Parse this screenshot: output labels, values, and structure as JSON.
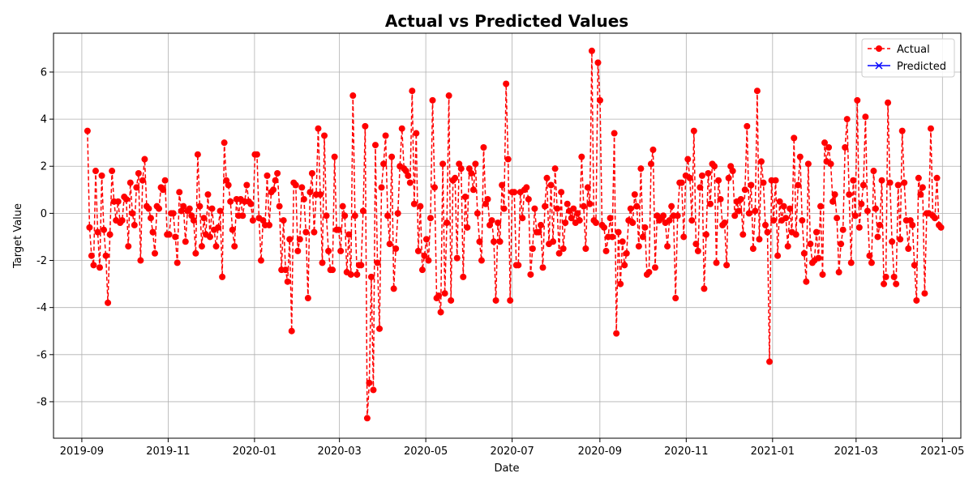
{
  "chart_data": {
    "type": "line",
    "title": "Actual vs Predicted Values",
    "xlabel": "Date",
    "ylabel": "Target Value",
    "xlim": [
      "2019-08-12",
      "2021-05-14"
    ],
    "ylim": [
      -9.55,
      7.65
    ],
    "grid": true,
    "legend_position": "top-right",
    "x_ticks": [
      {
        "date": "2019-09-01",
        "label": "2019-09"
      },
      {
        "date": "2019-11-01",
        "label": "2019-11"
      },
      {
        "date": "2020-01-01",
        "label": "2020-01"
      },
      {
        "date": "2020-03-01",
        "label": "2020-03"
      },
      {
        "date": "2020-05-01",
        "label": "2020-05"
      },
      {
        "date": "2020-07-01",
        "label": "2020-07"
      },
      {
        "date": "2020-09-01",
        "label": "2020-09"
      },
      {
        "date": "2020-11-01",
        "label": "2020-11"
      },
      {
        "date": "2021-01-01",
        "label": "2021-01"
      },
      {
        "date": "2021-03-01",
        "label": "2021-03"
      },
      {
        "date": "2021-05-01",
        "label": "2021-05"
      }
    ],
    "y_ticks": [
      -8,
      -6,
      -4,
      -2,
      0,
      2,
      4,
      6
    ],
    "x_start": "2019-09-05",
    "x_end": "2021-04-30",
    "series": [
      {
        "name": "Actual",
        "color": "#ff0000",
        "line_style": "dashed",
        "marker": "circle",
        "values": [
          3.5,
          -0.6,
          -1.8,
          -2.2,
          1.8,
          -0.8,
          -2.3,
          1.6,
          -0.7,
          -1.8,
          -3.8,
          -0.9,
          1.8,
          0.5,
          -0.3,
          0.5,
          -0.4,
          -0.3,
          0.7,
          0.6,
          -1.4,
          1.3,
          0.0,
          -0.5,
          1.1,
          1.7,
          -2.0,
          1.4,
          2.3,
          0.3,
          0.2,
          -0.2,
          -0.8,
          -1.7,
          0.3,
          0.2,
          1.1,
          1.0,
          1.4,
          -0.9,
          -0.9,
          0.0,
          0.0,
          -1.0,
          -2.1,
          0.9,
          0.1,
          0.3,
          -1.2,
          0.1,
          0.2,
          -0.1,
          -0.3,
          -1.7,
          2.5,
          0.3,
          -1.4,
          -0.2,
          -0.9,
          0.8,
          -1.0,
          0.2,
          -0.7,
          -1.4,
          -0.6,
          0.1,
          -2.7,
          3.0,
          1.4,
          1.2,
          0.5,
          -0.7,
          -1.4,
          0.6,
          -0.1,
          0.6,
          -0.1,
          0.5,
          1.2,
          0.5,
          0.4,
          -0.3,
          2.5,
          2.5,
          -0.2,
          -2.0,
          -0.3,
          -0.5,
          1.6,
          -0.5,
          0.9,
          1.0,
          1.4,
          1.7,
          0.3,
          -2.4,
          -0.3,
          -2.4,
          -2.9,
          -1.1,
          -5.0,
          1.3,
          1.2,
          -1.6,
          -1.1,
          1.1,
          0.6,
          -0.8,
          -3.6,
          0.9,
          1.7,
          -0.8,
          0.8,
          3.6,
          0.8,
          -2.1,
          3.3,
          -0.1,
          -1.6,
          -2.4,
          -2.4,
          2.4,
          -0.7,
          -0.7,
          -1.6,
          0.3,
          -0.1,
          -2.5,
          -0.9,
          -2.6,
          5.0,
          -0.1,
          -2.6,
          -2.2,
          -2.2,
          0.1,
          3.7,
          -8.7,
          -7.2,
          -2.7,
          -7.5,
          2.9,
          -2.1,
          -4.9,
          1.1,
          2.1,
          3.3,
          -0.1,
          -1.3,
          2.4,
          -3.2,
          -1.5,
          0.0,
          2.0,
          3.6,
          1.9,
          1.8,
          1.6,
          1.3,
          5.2,
          0.4,
          3.4,
          -1.6,
          0.3,
          -2.4,
          -1.8,
          -1.1,
          -2.0,
          -0.2,
          4.8,
          1.1,
          -3.6,
          -3.5,
          -4.2,
          2.1,
          -3.4,
          -0.4,
          5.0,
          -3.7,
          1.4,
          1.5,
          -1.9,
          2.1,
          1.9,
          -2.7,
          0.7,
          -0.6,
          1.9,
          1.7,
          1.0,
          2.1,
          0.0,
          -1.2,
          -2.0,
          2.8,
          0.4,
          0.6,
          -0.5,
          -0.3,
          -1.2,
          -3.7,
          -0.4,
          -1.2,
          1.2,
          0.2,
          5.5,
          2.3,
          -3.7,
          0.9,
          0.9,
          -2.2,
          -2.2,
          0.9,
          -0.2,
          1.0,
          1.1,
          0.6,
          -2.6,
          -1.5,
          0.2,
          -0.8,
          -0.8,
          -0.5,
          -2.3,
          0.3,
          1.5,
          -1.3,
          1.2,
          -1.2,
          1.9,
          0.2,
          -1.7,
          0.9,
          -1.5,
          -0.4,
          0.4,
          0.1,
          -0.2,
          0.2,
          -0.4,
          0.0,
          -0.3,
          2.4,
          0.3,
          -1.5,
          1.1,
          0.4,
          6.9,
          -0.3,
          -0.4,
          6.4,
          4.8,
          -0.5,
          -0.6,
          -1.6,
          -1.0,
          -0.2,
          -1.0,
          3.4,
          -5.1,
          -0.8,
          -3.0,
          -1.2,
          -2.2,
          -1.7,
          -0.3,
          0.2,
          -0.4,
          0.8,
          0.3,
          -1.4,
          1.9,
          -1.0,
          -0.6,
          -2.6,
          -2.5,
          2.1,
          2.7,
          -2.3,
          -0.1,
          -0.3,
          -0.2,
          -0.1,
          -0.4,
          -1.4,
          -0.3,
          0.3,
          -0.1,
          -3.6,
          -0.1,
          1.3,
          1.3,
          -1.0,
          1.6,
          2.3,
          1.5,
          -0.3,
          3.5,
          -1.3,
          -1.6,
          1.1,
          1.6,
          -3.2,
          -0.9,
          1.7,
          0.4,
          2.1,
          2.0,
          -2.1,
          1.4,
          0.6,
          -0.5,
          -0.4,
          -2.2,
          1.5,
          2.0,
          1.8,
          -0.1,
          0.5,
          0.1,
          0.6,
          -0.9,
          1.0,
          3.7,
          0.0,
          1.2,
          -1.5,
          0.1,
          5.2,
          -1.1,
          2.2,
          1.3,
          -0.5,
          -0.8,
          -6.3,
          1.4,
          -0.3,
          1.4,
          -1.8,
          0.5,
          -0.3,
          0.3,
          -0.2,
          -1.4,
          0.2,
          -0.8,
          3.2,
          -0.9,
          1.2,
          2.4,
          -0.3,
          -1.7,
          -2.9,
          2.1,
          -1.3,
          -2.1,
          -2.0,
          -0.8,
          -1.9,
          0.3,
          -2.6,
          3.0,
          2.2,
          2.8,
          2.1,
          0.5,
          0.8,
          -0.2,
          -2.5,
          -1.3,
          -0.7,
          2.8,
          4.0,
          0.8,
          -2.1,
          1.4,
          -0.1,
          4.8,
          -0.6,
          0.4,
          1.2,
          4.1,
          0.1,
          -1.8,
          -2.1,
          1.8,
          0.2,
          -1.0,
          -0.5,
          1.4,
          -3.0,
          -2.7,
          4.7,
          1.3,
          -1.2,
          -2.7,
          -3.0,
          1.2,
          -1.1,
          3.5,
          1.3,
          -0.3,
          -1.5,
          -0.3,
          -0.5,
          -2.2,
          -3.7,
          1.5,
          0.8,
          1.1,
          -3.4,
          0.0,
          0.0,
          3.6,
          -0.1,
          -0.2,
          1.5,
          -0.5,
          -0.6
        ]
      },
      {
        "name": "Predicted",
        "color": "#0000ff",
        "line_style": "solid",
        "marker": "x",
        "values": []
      }
    ]
  }
}
